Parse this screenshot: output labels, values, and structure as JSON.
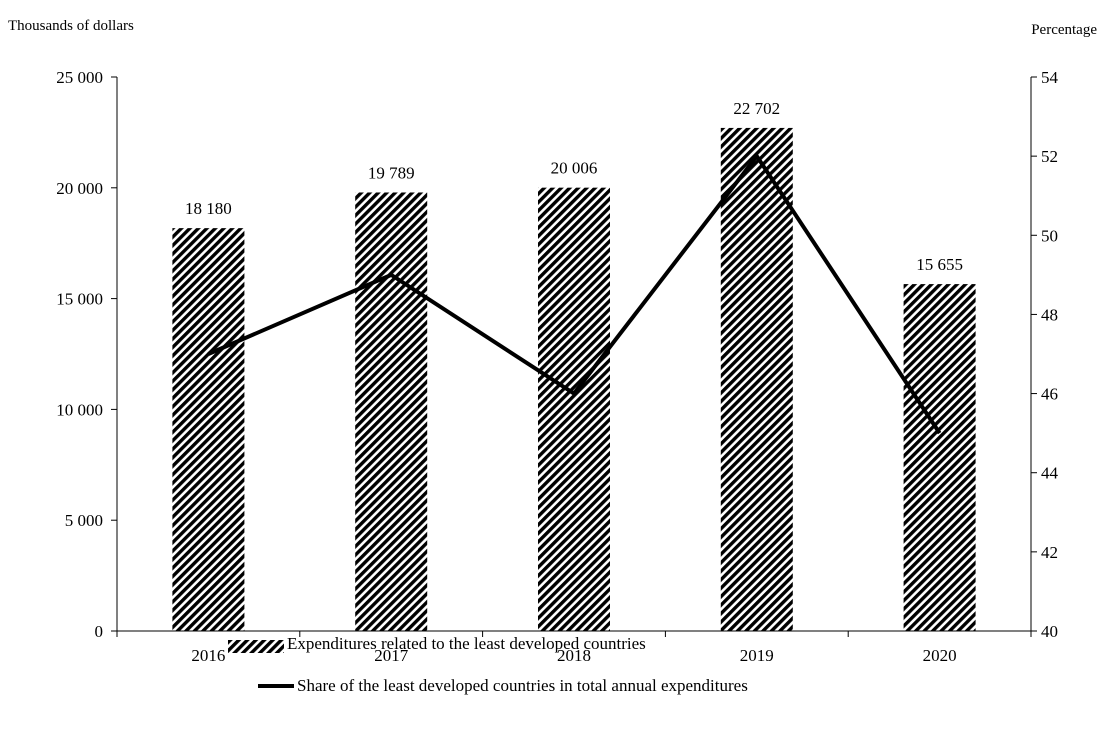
{
  "chart_data": {
    "type": "bar",
    "categories": [
      "2016",
      "2017",
      "2018",
      "2019",
      "2020"
    ],
    "series": [
      {
        "name": "Expenditures related to the least developed countries",
        "type": "bar",
        "axis": "left",
        "values": [
          18180,
          19789,
          20006,
          22702,
          15655
        ],
        "labels": [
          "18 180",
          "19 789",
          "20 006",
          "22 702",
          "15 655"
        ]
      },
      {
        "name": "Share of the least developed countries in total annual expenditures",
        "type": "line",
        "axis": "right",
        "values": [
          47,
          49,
          46,
          52,
          45
        ]
      }
    ],
    "left_axis": {
      "label": "Thousands of dollars",
      "ylim": [
        0,
        25000
      ],
      "ticks": [
        0,
        5000,
        10000,
        15000,
        20000,
        25000
      ],
      "tick_labels": [
        "0",
        "5 000",
        "10 000",
        "15 000",
        "20 000",
        "25 000"
      ]
    },
    "right_axis": {
      "label": "Percentage",
      "ylim": [
        40,
        54
      ],
      "ticks": [
        40,
        42,
        44,
        46,
        48,
        50,
        52,
        54
      ],
      "tick_labels": [
        "40",
        "42",
        "44",
        "46",
        "48",
        "50",
        "52",
        "54"
      ]
    },
    "grid": false,
    "legend_position": "bottom",
    "colors": {
      "bar_stripe": "#000000",
      "bar_background": "#ffffff",
      "line": "#000000"
    }
  }
}
